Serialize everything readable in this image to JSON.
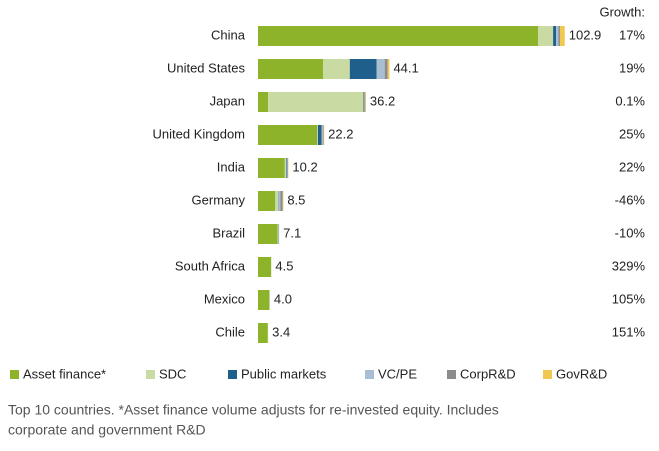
{
  "chart_data": {
    "type": "stacked-bar-horizontal",
    "categories": [
      "China",
      "United States",
      "Japan",
      "United Kingdom",
      "India",
      "Germany",
      "Brazil",
      "South Africa",
      "Mexico",
      "Chile"
    ],
    "series": [
      {
        "name": "Asset finance*",
        "color": "#8db32b",
        "values": [
          94,
          21.8,
          3.4,
          19.8,
          9.0,
          5.8,
          6.6,
          4.4,
          3.8,
          3.3
        ]
      },
      {
        "name": "SDC",
        "color": "#c9dba2",
        "values": [
          5,
          9,
          32,
          0.3,
          0.4,
          1.0,
          0.3,
          0.1,
          0.1,
          0.1
        ]
      },
      {
        "name": "Public markets",
        "color": "#1f5f8b",
        "values": [
          1.0,
          9,
          0.2,
          1.2,
          0.2,
          0.1,
          0.1,
          0,
          0,
          0
        ]
      },
      {
        "name": "VC/PE",
        "color": "#a9bdd3",
        "values": [
          0.8,
          2.7,
          0.1,
          0.5,
          0.3,
          0.6,
          0.1,
          0,
          0.1,
          0
        ]
      },
      {
        "name": "CorpR&D",
        "color": "#8c8c8c",
        "values": [
          0.5,
          1.0,
          0.3,
          0.2,
          0.2,
          0.8,
          0,
          0,
          0,
          0
        ]
      },
      {
        "name": "GovR&D",
        "color": "#f0c850",
        "values": [
          1.6,
          0.6,
          0.2,
          0.2,
          0.1,
          0.2,
          0,
          0,
          0,
          0
        ]
      }
    ],
    "totals": [
      102.9,
      44.1,
      36.2,
      22.2,
      10.2,
      8.5,
      7.1,
      4.5,
      4.0,
      3.4
    ],
    "total_labels": [
      "102.9",
      "44.1",
      "36.2",
      "22.2",
      "10.2",
      "8.5",
      "7.1",
      "4.5",
      "4.0",
      "3.4"
    ],
    "growth_title": "Growth:",
    "growth": [
      17,
      19,
      0.1,
      25,
      22,
      -46,
      -10,
      329,
      105,
      151
    ],
    "growth_labels": [
      "17%",
      "19%",
      "0.1%",
      "25%",
      "22%",
      "-46%",
      "-10%",
      "329%",
      "105%",
      "151%"
    ],
    "xlim": [
      0,
      105
    ],
    "caption": [
      "Top 10 countries. *Asset finance volume adjusts for re-invested equity. Includes",
      "corporate and government R&D"
    ]
  }
}
